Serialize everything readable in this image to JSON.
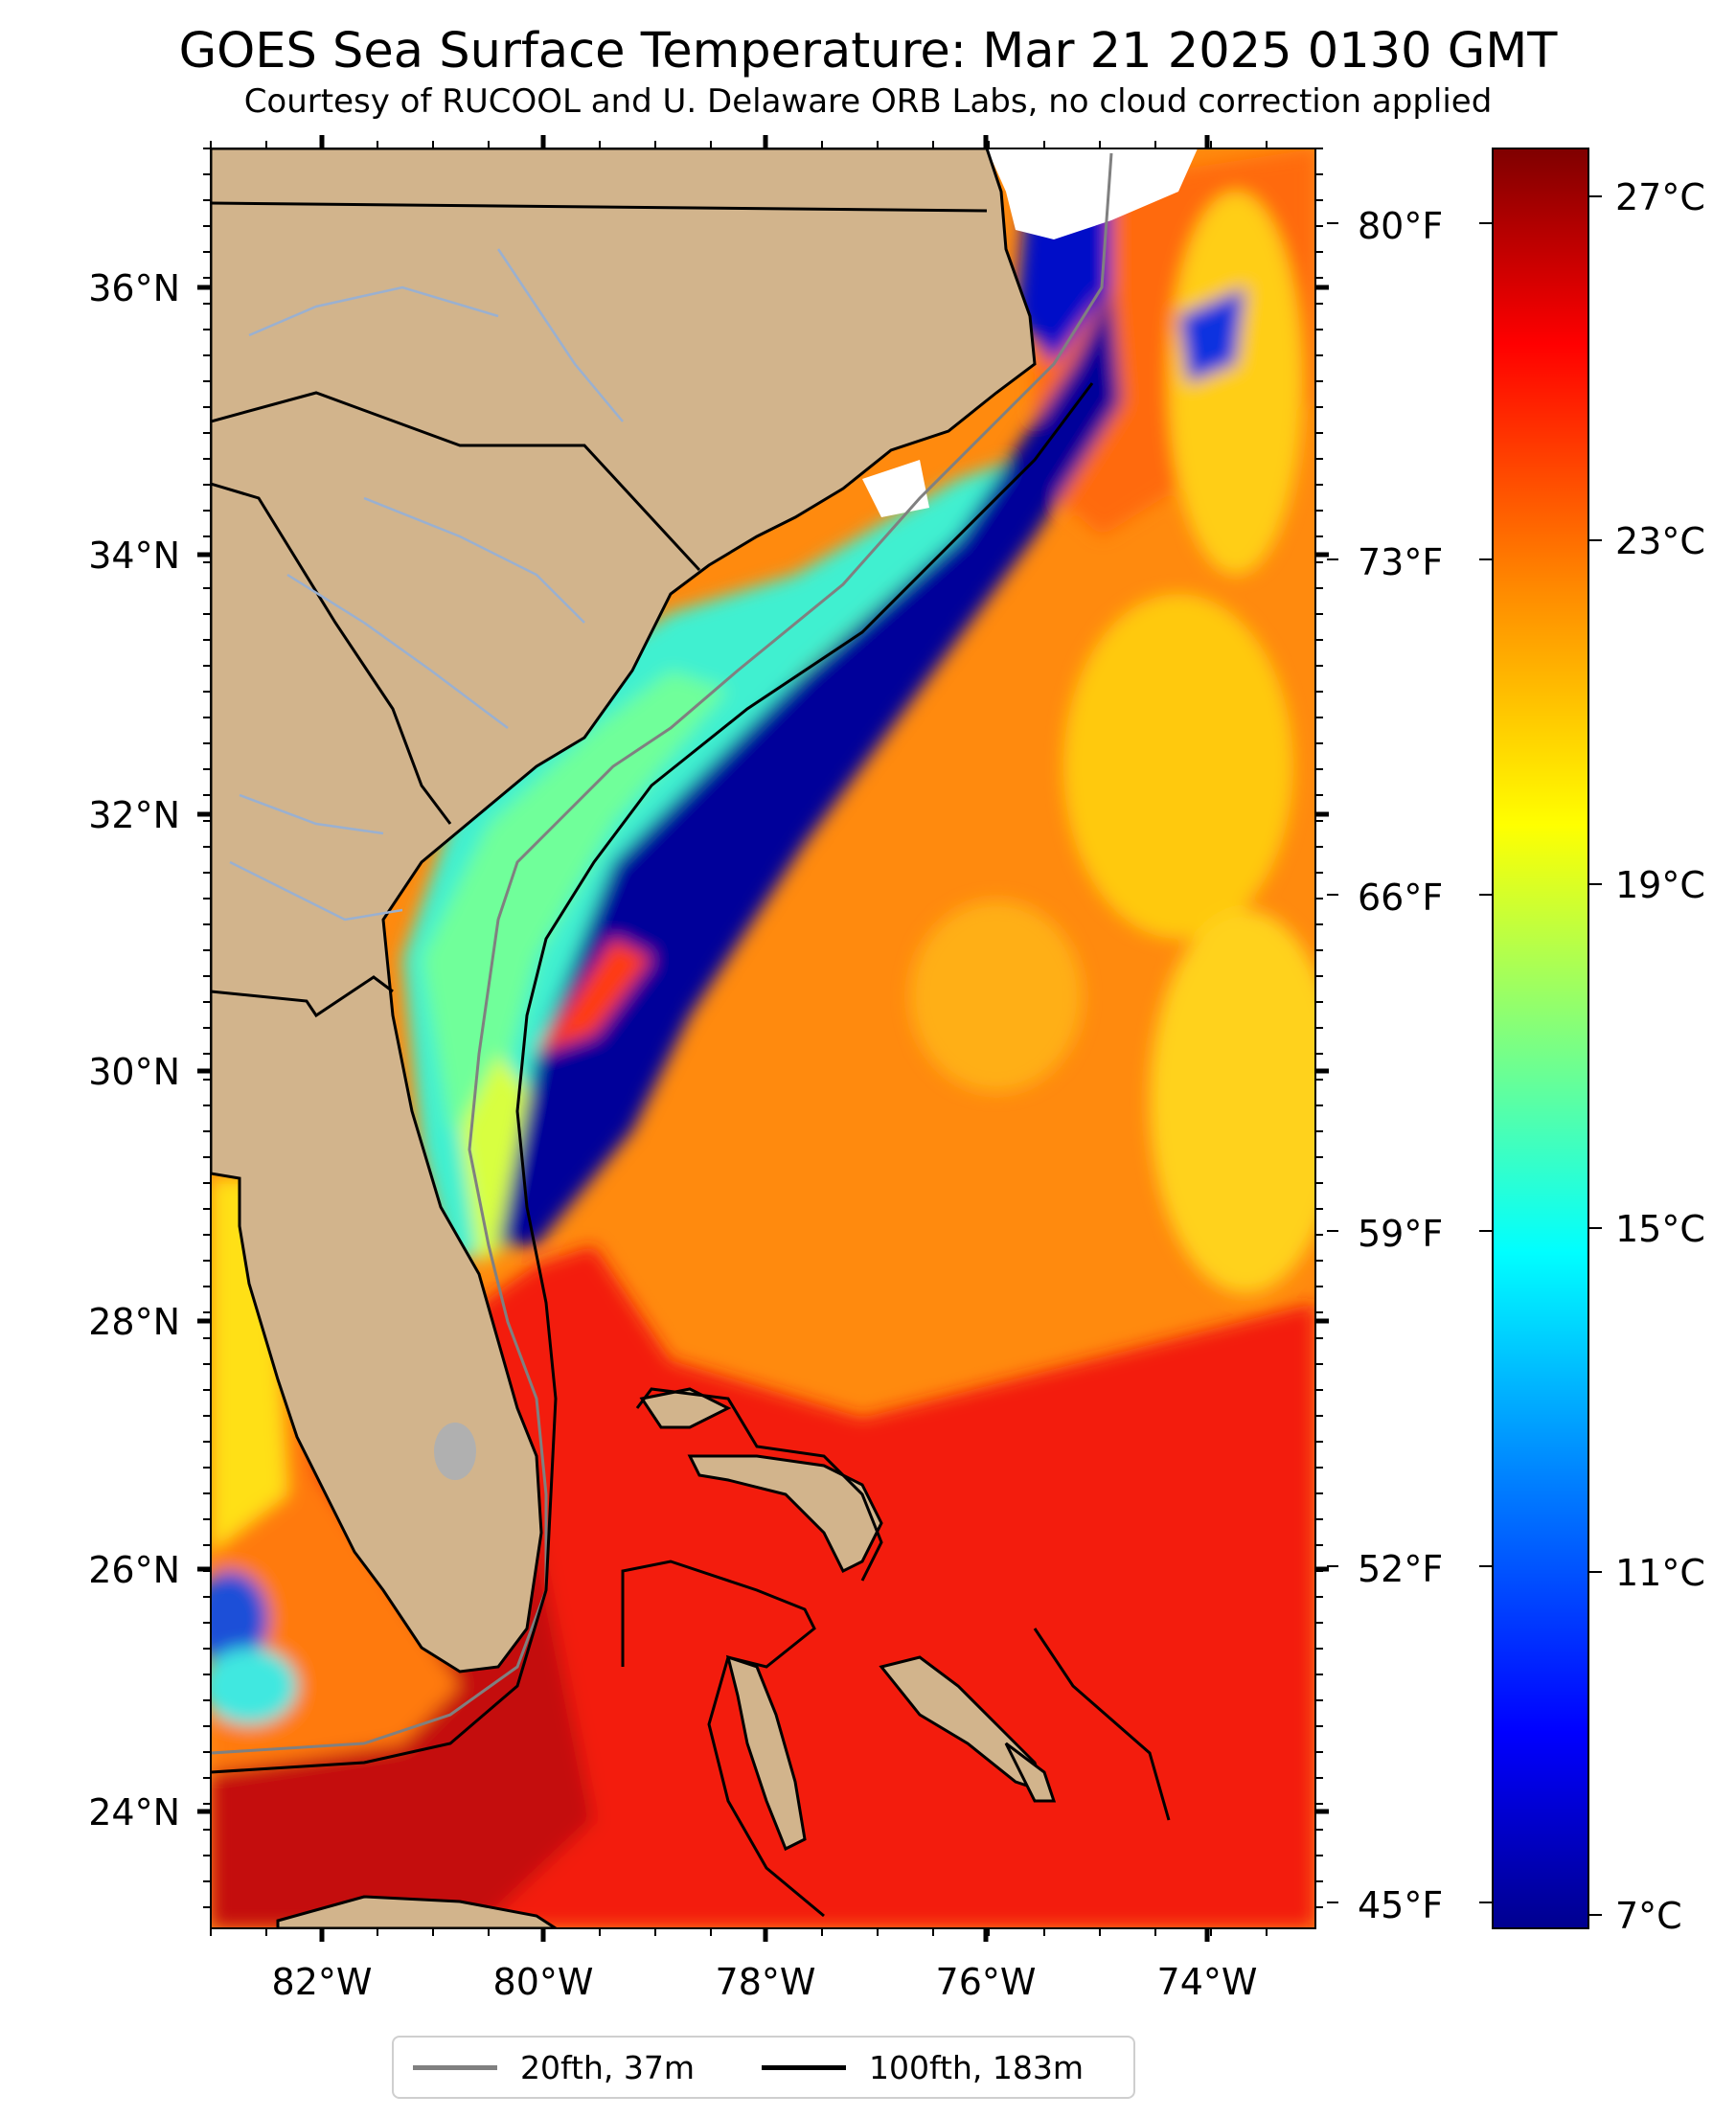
{
  "header": {
    "title": "GOES Sea Surface Temperature: Mar 21 2025 0130 GMT",
    "subtitle": "Courtesy of RUCOOL and U. Delaware ORB Labs, no cloud correction applied"
  },
  "map": {
    "lat_labels": [
      "36°N",
      "34°N",
      "32°N",
      "30°N",
      "28°N",
      "26°N",
      "24°N"
    ],
    "lon_labels": [
      "82°W",
      "80°W",
      "78°W",
      "76°W",
      "74°W"
    ],
    "fahrenheit_labels": [
      "80°F",
      "73°F",
      "66°F",
      "59°F",
      "52°F",
      "45°F"
    ],
    "land_color": "#d2b48c",
    "cloud_color": "#ffffff",
    "lake_color": "#b0b0b0"
  },
  "colorbar": {
    "labels": [
      "27°C",
      "23°C",
      "19°C",
      "15°C",
      "11°C",
      "7°C"
    ],
    "colors": [
      "#7f0000",
      "#ff0000",
      "#ff8c00",
      "#ffff00",
      "#7fff7f",
      "#00ffff",
      "#007fff",
      "#0000ff",
      "#00008f"
    ]
  },
  "legend": {
    "items": [
      {
        "label": "20fth, 37m",
        "color": "#808080"
      },
      {
        "label": "100fth, 183m",
        "color": "#000000"
      }
    ]
  }
}
